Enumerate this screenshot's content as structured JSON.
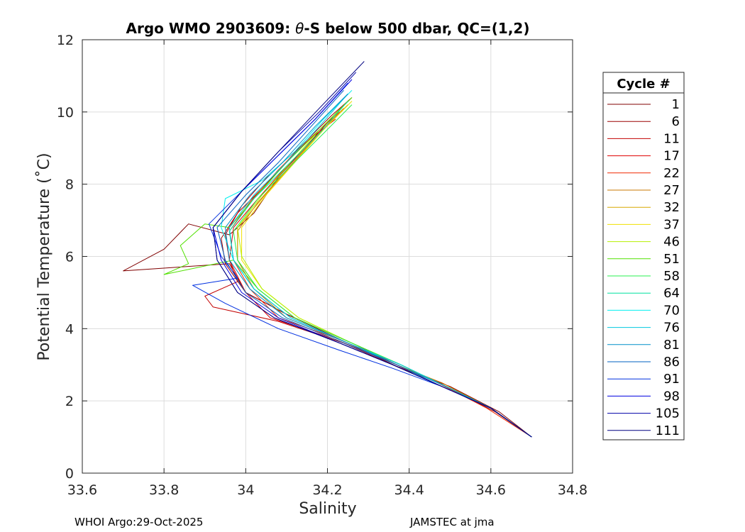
{
  "chart_data": {
    "type": "line",
    "title_parts": [
      "Argo WMO 2903609: ",
      "θ",
      "-S below 500 dbar,  QC=(1,2)"
    ],
    "title": "Argo WMO 2903609: θ-S below 500 dbar,  QC=(1,2)",
    "xlabel": "Salinity",
    "ylabel": "Potential Temperature (˚C)",
    "xlim": [
      33.6,
      34.8
    ],
    "ylim": [
      0,
      12
    ],
    "xticks": [
      33.6,
      33.8,
      34.0,
      34.2,
      34.4,
      34.6,
      34.8
    ],
    "xtick_labels": [
      "33.6",
      "33.8",
      "34",
      "34.2",
      "34.4",
      "34.6",
      "34.8"
    ],
    "yticks": [
      0,
      2,
      4,
      6,
      8,
      10,
      12
    ],
    "ytick_labels": [
      "0",
      "2",
      "4",
      "6",
      "8",
      "10",
      "12"
    ],
    "grid": true,
    "legend_title": "Cycle #",
    "legend_position": "right",
    "series": [
      {
        "name": "1",
        "color": "#800000",
        "points": [
          [
            34.7,
            1.0
          ],
          [
            34.62,
            1.7
          ],
          [
            34.5,
            2.4
          ],
          [
            34.38,
            2.9
          ],
          [
            34.25,
            3.6
          ],
          [
            34.1,
            4.4
          ],
          [
            34.0,
            5.0
          ],
          [
            33.96,
            5.8
          ],
          [
            33.7,
            5.6
          ],
          [
            33.8,
            6.2
          ],
          [
            33.86,
            6.9
          ],
          [
            33.96,
            6.6
          ],
          [
            34.02,
            7.2
          ],
          [
            34.08,
            8.2
          ],
          [
            34.16,
            9.2
          ],
          [
            34.24,
            10.2
          ]
        ]
      },
      {
        "name": "6",
        "color": "#9c0000",
        "points": [
          [
            34.7,
            1.0
          ],
          [
            34.61,
            1.7
          ],
          [
            34.49,
            2.4
          ],
          [
            34.37,
            3.0
          ],
          [
            34.26,
            3.6
          ],
          [
            34.1,
            4.4
          ],
          [
            34.0,
            5.0
          ],
          [
            33.95,
            5.8
          ],
          [
            33.94,
            6.5
          ],
          [
            33.98,
            7.2
          ],
          [
            34.05,
            8.0
          ],
          [
            34.13,
            9.0
          ],
          [
            34.21,
            9.9
          ],
          [
            34.26,
            10.4
          ]
        ]
      },
      {
        "name": "11",
        "color": "#c30000",
        "points": [
          [
            34.7,
            1.0
          ],
          [
            34.6,
            1.8
          ],
          [
            34.48,
            2.5
          ],
          [
            34.36,
            3.0
          ],
          [
            34.24,
            3.6
          ],
          [
            34.08,
            4.2
          ],
          [
            33.92,
            4.6
          ],
          [
            33.9,
            4.9
          ],
          [
            33.98,
            5.3
          ],
          [
            33.96,
            5.9
          ],
          [
            33.95,
            6.6
          ],
          [
            33.99,
            7.4
          ],
          [
            34.06,
            8.3
          ],
          [
            34.14,
            9.1
          ],
          [
            34.22,
            9.8
          ]
        ]
      },
      {
        "name": "17",
        "color": "#e00000",
        "points": [
          [
            34.7,
            1.0
          ],
          [
            34.6,
            1.8
          ],
          [
            34.47,
            2.5
          ],
          [
            34.35,
            3.1
          ],
          [
            34.22,
            3.7
          ],
          [
            34.06,
            4.3
          ],
          [
            34.0,
            5.0
          ],
          [
            33.96,
            5.9
          ],
          [
            33.97,
            6.8
          ],
          [
            34.03,
            7.6
          ],
          [
            34.1,
            8.5
          ],
          [
            34.18,
            9.4
          ],
          [
            34.24,
            10.1
          ]
        ]
      },
      {
        "name": "22",
        "color": "#f02800",
        "points": [
          [
            34.7,
            1.0
          ],
          [
            34.59,
            1.8
          ],
          [
            34.47,
            2.5
          ],
          [
            34.35,
            3.1
          ],
          [
            34.23,
            3.7
          ],
          [
            34.08,
            4.3
          ],
          [
            34.01,
            5.1
          ],
          [
            33.97,
            5.9
          ],
          [
            33.96,
            6.7
          ],
          [
            34.01,
            7.5
          ],
          [
            34.08,
            8.4
          ],
          [
            34.16,
            9.3
          ],
          [
            34.23,
            10.0
          ]
        ]
      },
      {
        "name": "27",
        "color": "#c87800",
        "points": [
          [
            34.7,
            1.0
          ],
          [
            34.6,
            1.8
          ],
          [
            34.48,
            2.5
          ],
          [
            34.37,
            3.0
          ],
          [
            34.25,
            3.6
          ],
          [
            34.1,
            4.3
          ],
          [
            34.02,
            5.1
          ],
          [
            33.98,
            5.9
          ],
          [
            33.98,
            6.7
          ],
          [
            34.03,
            7.5
          ],
          [
            34.1,
            8.4
          ],
          [
            34.17,
            9.3
          ],
          [
            34.24,
            10.1
          ]
        ]
      },
      {
        "name": "32",
        "color": "#d7a800",
        "points": [
          [
            34.7,
            1.0
          ],
          [
            34.6,
            1.8
          ],
          [
            34.49,
            2.4
          ],
          [
            34.38,
            3.0
          ],
          [
            34.26,
            3.6
          ],
          [
            34.12,
            4.3
          ],
          [
            34.03,
            5.1
          ],
          [
            33.98,
            5.9
          ],
          [
            33.98,
            6.8
          ],
          [
            34.04,
            7.6
          ],
          [
            34.11,
            8.5
          ],
          [
            34.18,
            9.4
          ],
          [
            34.25,
            10.2
          ]
        ]
      },
      {
        "name": "37",
        "color": "#f0e000",
        "points": [
          [
            34.7,
            1.0
          ],
          [
            34.6,
            1.8
          ],
          [
            34.49,
            2.4
          ],
          [
            34.38,
            3.0
          ],
          [
            34.26,
            3.6
          ],
          [
            34.13,
            4.3
          ],
          [
            34.04,
            5.1
          ],
          [
            33.99,
            5.9
          ],
          [
            33.99,
            6.8
          ],
          [
            34.05,
            7.7
          ],
          [
            34.12,
            8.6
          ],
          [
            34.19,
            9.5
          ],
          [
            34.26,
            10.3
          ]
        ]
      },
      {
        "name": "46",
        "color": "#b4f000",
        "points": [
          [
            34.7,
            1.0
          ],
          [
            34.6,
            1.8
          ],
          [
            34.49,
            2.4
          ],
          [
            34.38,
            3.0
          ],
          [
            34.26,
            3.6
          ],
          [
            34.13,
            4.3
          ],
          [
            34.04,
            5.1
          ],
          [
            33.99,
            6.0
          ],
          [
            33.98,
            6.8
          ],
          [
            34.04,
            7.7
          ],
          [
            34.11,
            8.6
          ],
          [
            34.18,
            9.5
          ],
          [
            34.25,
            10.3
          ]
        ]
      },
      {
        "name": "51",
        "color": "#50e000",
        "points": [
          [
            34.7,
            1.0
          ],
          [
            34.6,
            1.8
          ],
          [
            34.49,
            2.4
          ],
          [
            34.38,
            3.0
          ],
          [
            34.26,
            3.6
          ],
          [
            34.12,
            4.3
          ],
          [
            34.03,
            5.1
          ],
          [
            33.97,
            5.9
          ],
          [
            33.8,
            5.5
          ],
          [
            33.86,
            5.8
          ],
          [
            33.84,
            6.3
          ],
          [
            33.9,
            6.9
          ],
          [
            33.96,
            6.8
          ],
          [
            34.02,
            7.6
          ],
          [
            34.1,
            8.6
          ],
          [
            34.18,
            9.5
          ],
          [
            34.26,
            10.4
          ]
        ]
      },
      {
        "name": "58",
        "color": "#28f050",
        "points": [
          [
            34.7,
            1.0
          ],
          [
            34.6,
            1.8
          ],
          [
            34.49,
            2.4
          ],
          [
            34.38,
            3.0
          ],
          [
            34.26,
            3.6
          ],
          [
            34.12,
            4.3
          ],
          [
            34.03,
            5.1
          ],
          [
            33.98,
            5.9
          ],
          [
            33.97,
            6.7
          ],
          [
            34.03,
            7.6
          ],
          [
            34.11,
            8.5
          ],
          [
            34.19,
            9.4
          ],
          [
            34.26,
            10.2
          ]
        ]
      },
      {
        "name": "64",
        "color": "#00e0a0",
        "points": [
          [
            34.7,
            1.0
          ],
          [
            34.6,
            1.8
          ],
          [
            34.49,
            2.4
          ],
          [
            34.38,
            3.0
          ],
          [
            34.25,
            3.6
          ],
          [
            34.11,
            4.3
          ],
          [
            34.02,
            5.1
          ],
          [
            33.97,
            5.9
          ],
          [
            33.96,
            6.7
          ],
          [
            34.02,
            7.6
          ],
          [
            34.1,
            8.5
          ],
          [
            34.18,
            9.4
          ],
          [
            34.25,
            10.3
          ]
        ]
      },
      {
        "name": "70",
        "color": "#00f0f0",
        "points": [
          [
            34.7,
            1.0
          ],
          [
            34.6,
            1.8
          ],
          [
            34.49,
            2.4
          ],
          [
            34.38,
            3.0
          ],
          [
            34.25,
            3.6
          ],
          [
            34.11,
            4.3
          ],
          [
            34.02,
            5.1
          ],
          [
            33.97,
            5.9
          ],
          [
            33.94,
            6.8
          ],
          [
            33.95,
            7.6
          ],
          [
            34.04,
            8.1
          ],
          [
            34.12,
            8.9
          ],
          [
            34.19,
            9.8
          ],
          [
            34.26,
            10.6
          ]
        ]
      },
      {
        "name": "76",
        "color": "#00c8e0",
        "points": [
          [
            34.7,
            1.0
          ],
          [
            34.6,
            1.8
          ],
          [
            34.49,
            2.4
          ],
          [
            34.38,
            3.0
          ],
          [
            34.25,
            3.6
          ],
          [
            34.11,
            4.3
          ],
          [
            34.02,
            5.1
          ],
          [
            33.97,
            5.9
          ],
          [
            33.96,
            6.8
          ],
          [
            34.02,
            7.7
          ],
          [
            34.1,
            8.6
          ],
          [
            34.18,
            9.6
          ],
          [
            34.25,
            10.5
          ]
        ]
      },
      {
        "name": "81",
        "color": "#0090c8",
        "points": [
          [
            34.7,
            1.0
          ],
          [
            34.6,
            1.8
          ],
          [
            34.49,
            2.4
          ],
          [
            34.37,
            3.0
          ],
          [
            34.25,
            3.6
          ],
          [
            34.1,
            4.3
          ],
          [
            34.01,
            5.1
          ],
          [
            33.96,
            5.9
          ],
          [
            33.95,
            6.8
          ],
          [
            34.01,
            7.7
          ],
          [
            34.09,
            8.6
          ],
          [
            34.17,
            9.6
          ],
          [
            34.25,
            10.5
          ]
        ]
      },
      {
        "name": "86",
        "color": "#0060c0",
        "points": [
          [
            34.7,
            1.0
          ],
          [
            34.6,
            1.8
          ],
          [
            34.48,
            2.4
          ],
          [
            34.37,
            3.0
          ],
          [
            34.24,
            3.6
          ],
          [
            34.09,
            4.3
          ],
          [
            34.0,
            5.0
          ],
          [
            33.95,
            5.9
          ],
          [
            33.93,
            6.8
          ],
          [
            34.0,
            7.7
          ],
          [
            34.08,
            8.6
          ],
          [
            34.16,
            9.6
          ],
          [
            34.24,
            10.6
          ]
        ]
      },
      {
        "name": "91",
        "color": "#0030e0",
        "points": [
          [
            34.7,
            1.0
          ],
          [
            34.6,
            1.8
          ],
          [
            34.48,
            2.4
          ],
          [
            34.36,
            2.9
          ],
          [
            34.23,
            3.4
          ],
          [
            34.08,
            4.0
          ],
          [
            33.95,
            4.7
          ],
          [
            33.87,
            5.2
          ],
          [
            33.98,
            5.4
          ],
          [
            33.94,
            6.0
          ],
          [
            33.91,
            6.9
          ],
          [
            33.99,
            7.8
          ],
          [
            34.08,
            8.8
          ],
          [
            34.17,
            9.8
          ],
          [
            34.25,
            10.8
          ]
        ]
      },
      {
        "name": "98",
        "color": "#0000e0",
        "points": [
          [
            34.7,
            1.0
          ],
          [
            34.6,
            1.8
          ],
          [
            34.48,
            2.4
          ],
          [
            34.36,
            3.0
          ],
          [
            34.23,
            3.6
          ],
          [
            34.08,
            4.3
          ],
          [
            33.99,
            5.0
          ],
          [
            33.94,
            5.9
          ],
          [
            33.92,
            6.8
          ],
          [
            33.99,
            7.8
          ],
          [
            34.08,
            8.8
          ],
          [
            34.17,
            9.8
          ],
          [
            34.26,
            10.9
          ]
        ]
      },
      {
        "name": "105",
        "color": "#0000a8",
        "points": [
          [
            34.7,
            1.0
          ],
          [
            34.6,
            1.8
          ],
          [
            34.48,
            2.4
          ],
          [
            34.36,
            3.0
          ],
          [
            34.23,
            3.6
          ],
          [
            34.07,
            4.3
          ],
          [
            33.98,
            5.0
          ],
          [
            33.93,
            5.9
          ],
          [
            33.92,
            6.8
          ],
          [
            33.99,
            7.8
          ],
          [
            34.08,
            8.9
          ],
          [
            34.18,
            10.0
          ],
          [
            34.27,
            11.1
          ]
        ]
      },
      {
        "name": "111",
        "color": "#000080",
        "points": [
          [
            34.7,
            1.0
          ],
          [
            34.6,
            1.8
          ],
          [
            34.48,
            2.4
          ],
          [
            34.36,
            3.0
          ],
          [
            34.23,
            3.6
          ],
          [
            34.07,
            4.3
          ],
          [
            33.98,
            5.0
          ],
          [
            33.93,
            5.9
          ],
          [
            33.92,
            6.8
          ],
          [
            33.99,
            7.8
          ],
          [
            34.08,
            8.9
          ],
          [
            34.18,
            10.1
          ],
          [
            34.29,
            11.4
          ]
        ]
      }
    ]
  },
  "footer": {
    "left": "WHOI Argo:29-Oct-2025",
    "right": "JAMSTEC at jma"
  }
}
